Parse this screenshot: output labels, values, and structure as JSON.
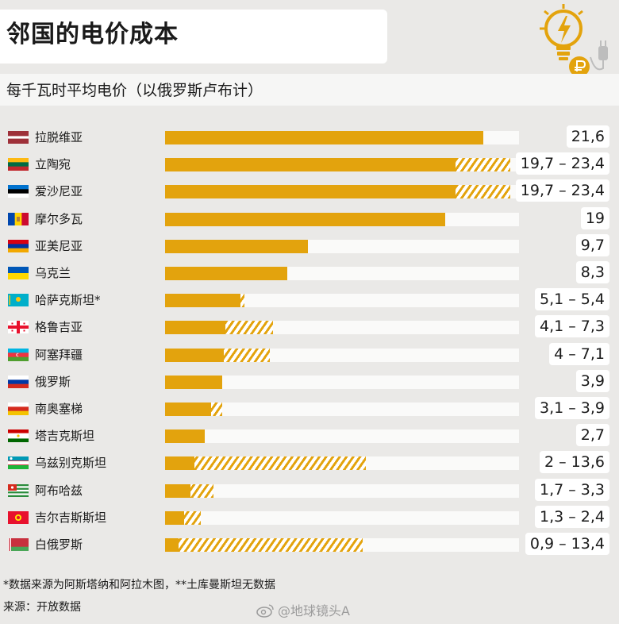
{
  "title": "邻国的电价成本",
  "subtitle": "每千瓦时平均电价（以俄罗斯卢布计）",
  "colors": {
    "bar": "#e3a30d",
    "track": "#fafaf9",
    "background": "#eae9e7"
  },
  "chart_data": {
    "type": "bar",
    "orientation": "horizontal",
    "title": "邻国的电价成本",
    "subtitle": "每千瓦时平均电价（以俄罗斯卢布计）",
    "xlim": [
      0,
      24
    ],
    "encoding": "solid bar = minimum price; hatched extension = range up to maximum",
    "items": [
      {
        "country": "拉脱维亚",
        "flag": "latvia-flag",
        "min": 21.6,
        "max": 21.6,
        "label": "21,6"
      },
      {
        "country": "立陶宛",
        "flag": "lithuania-flag",
        "min": 19.7,
        "max": 23.4,
        "label": "19,7 – 23,4"
      },
      {
        "country": "爱沙尼亚",
        "flag": "estonia-flag",
        "min": 19.7,
        "max": 23.4,
        "label": "19,7 – 23,4"
      },
      {
        "country": "摩尔多瓦",
        "flag": "moldova-flag",
        "min": 19,
        "max": 19,
        "label": "19"
      },
      {
        "country": "亚美尼亚",
        "flag": "armenia-flag",
        "min": 9.7,
        "max": 9.7,
        "label": "9,7"
      },
      {
        "country": "乌克兰",
        "flag": "ukraine-flag",
        "min": 8.3,
        "max": 8.3,
        "label": "8,3"
      },
      {
        "country": "哈萨克斯坦*",
        "flag": "kazakhstan-flag",
        "min": 5.1,
        "max": 5.4,
        "label": "5,1 – 5,4"
      },
      {
        "country": "格鲁吉亚",
        "flag": "georgia-flag",
        "min": 4.1,
        "max": 7.3,
        "label": "4,1 – 7,3"
      },
      {
        "country": "阿塞拜疆",
        "flag": "azerbaijan-flag",
        "min": 4,
        "max": 7.1,
        "label": "4 – 7,1"
      },
      {
        "country": "俄罗斯",
        "flag": "russia-flag",
        "min": 3.9,
        "max": 3.9,
        "label": "3,9"
      },
      {
        "country": "南奥塞梯",
        "flag": "south-ossetia-flag",
        "min": 3.1,
        "max": 3.9,
        "label": "3,1 – 3,9"
      },
      {
        "country": "塔吉克斯坦",
        "flag": "tajikistan-flag",
        "min": 2.7,
        "max": 2.7,
        "label": "2,7"
      },
      {
        "country": "乌兹别克斯坦",
        "flag": "uzbekistan-flag",
        "min": 2,
        "max": 13.6,
        "label": "2 – 13,6"
      },
      {
        "country": "阿布哈兹",
        "flag": "abkhazia-flag",
        "min": 1.7,
        "max": 3.3,
        "label": "1,7 – 3,3"
      },
      {
        "country": "吉尔吉斯斯坦",
        "flag": "kyrgyzstan-flag",
        "min": 1.3,
        "max": 2.4,
        "label": "1,3 – 2,4"
      },
      {
        "country": "白俄罗斯",
        "flag": "belarus-flag",
        "min": 0.9,
        "max": 13.4,
        "label": "0,9 – 13,4"
      }
    ]
  },
  "footnote": "*数据来源为阿斯塔纳和阿拉木图，**土库曼斯坦无数据",
  "source": "来源：开放数据",
  "watermark": "@地球镜头A"
}
